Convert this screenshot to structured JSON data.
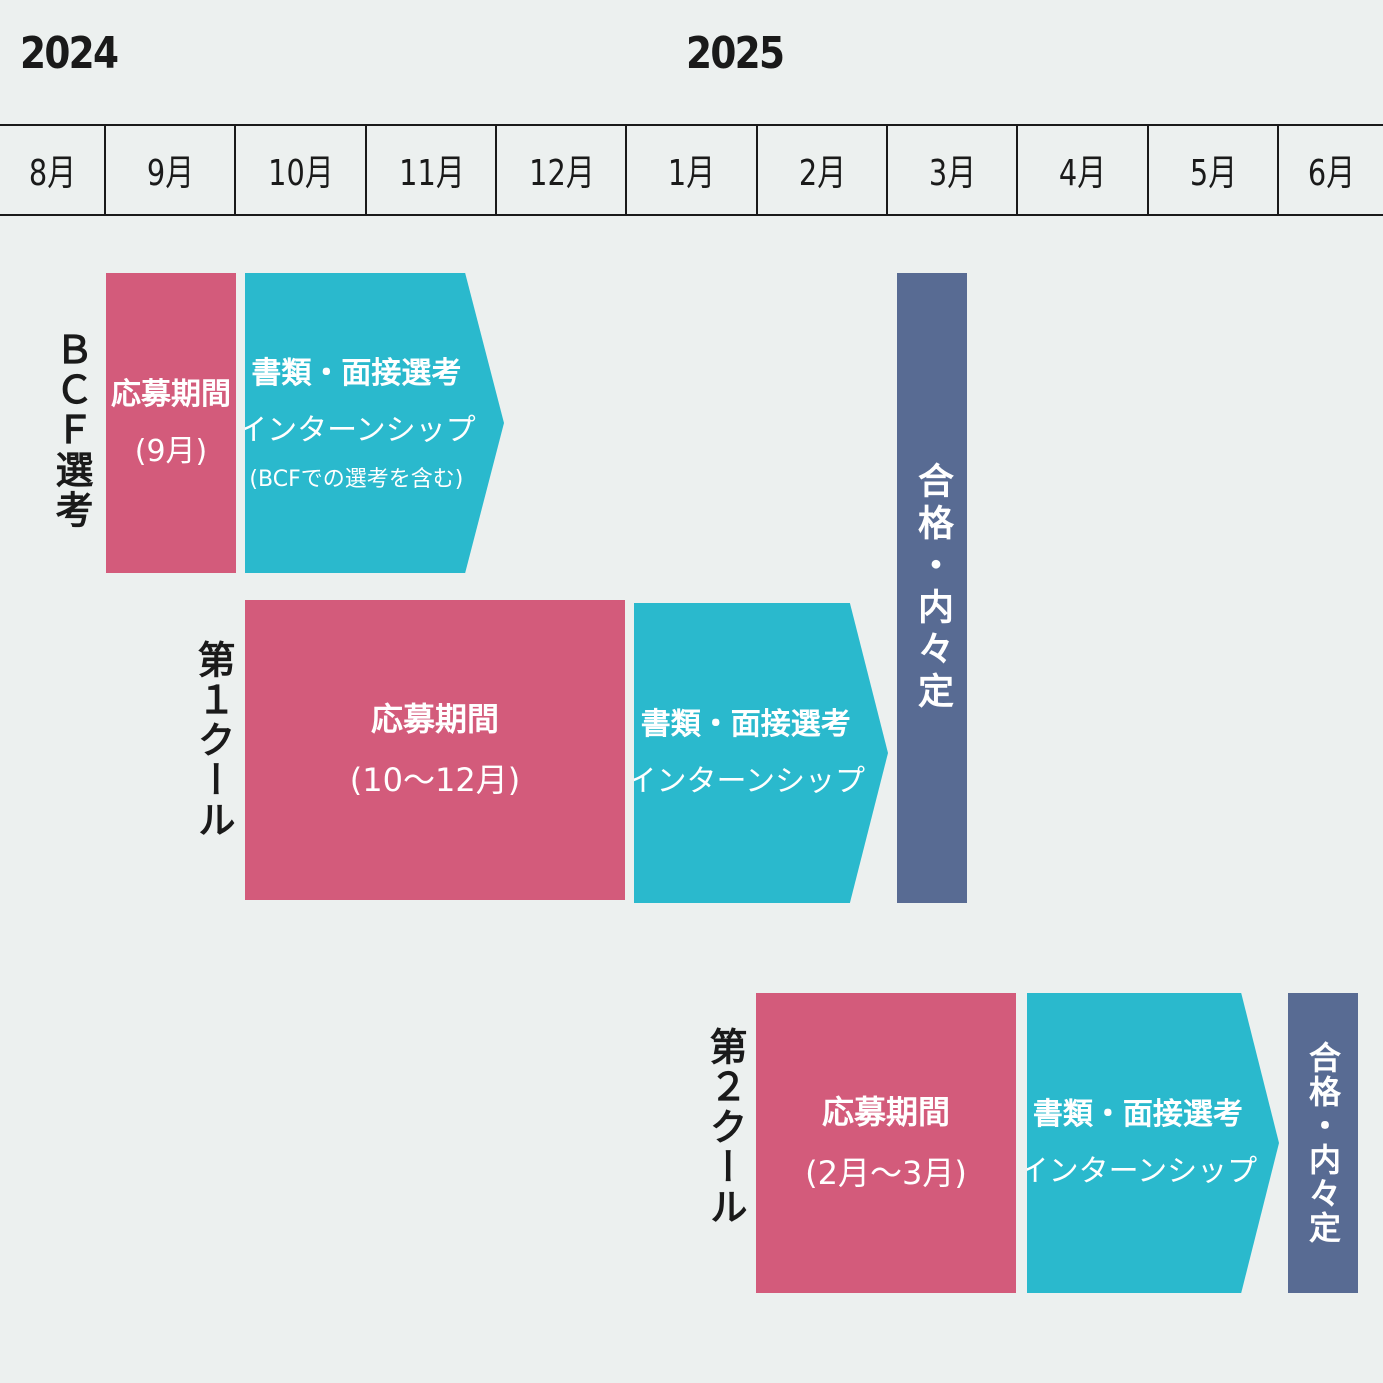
{
  "header": {
    "year_2024": "2024",
    "year_2025": "2025",
    "months": [
      "8月",
      "9月",
      "10月",
      "11月",
      "12月",
      "1月",
      "2月",
      "3月",
      "4月",
      "5月",
      "6月"
    ]
  },
  "tracks": {
    "bcf": {
      "label": "ＢＣＦ選考",
      "application": {
        "title": "応募期間",
        "period": "(9月)"
      },
      "selection": {
        "line1": "書類・面接選考",
        "line2": "インターンシップ",
        "line3": "(BCFでの選考を含む)"
      }
    },
    "cool1": {
      "label": "第１クール",
      "application": {
        "title": "応募期間",
        "period": "(10〜12月)"
      },
      "selection": {
        "line1": "書類・面接選考",
        "line2": "インターンシップ"
      }
    },
    "cool2": {
      "label": "第２クール",
      "application": {
        "title": "応募期間",
        "period": "(2月〜3月)"
      },
      "selection": {
        "line1": "書類・面接選考",
        "line2": "インターンシップ"
      }
    }
  },
  "offer_label": "合格・内々定",
  "colors": {
    "application": "#d35b7b",
    "selection": "#2ab9cd",
    "offer": "#586b93",
    "background": "#ecf0ef"
  }
}
